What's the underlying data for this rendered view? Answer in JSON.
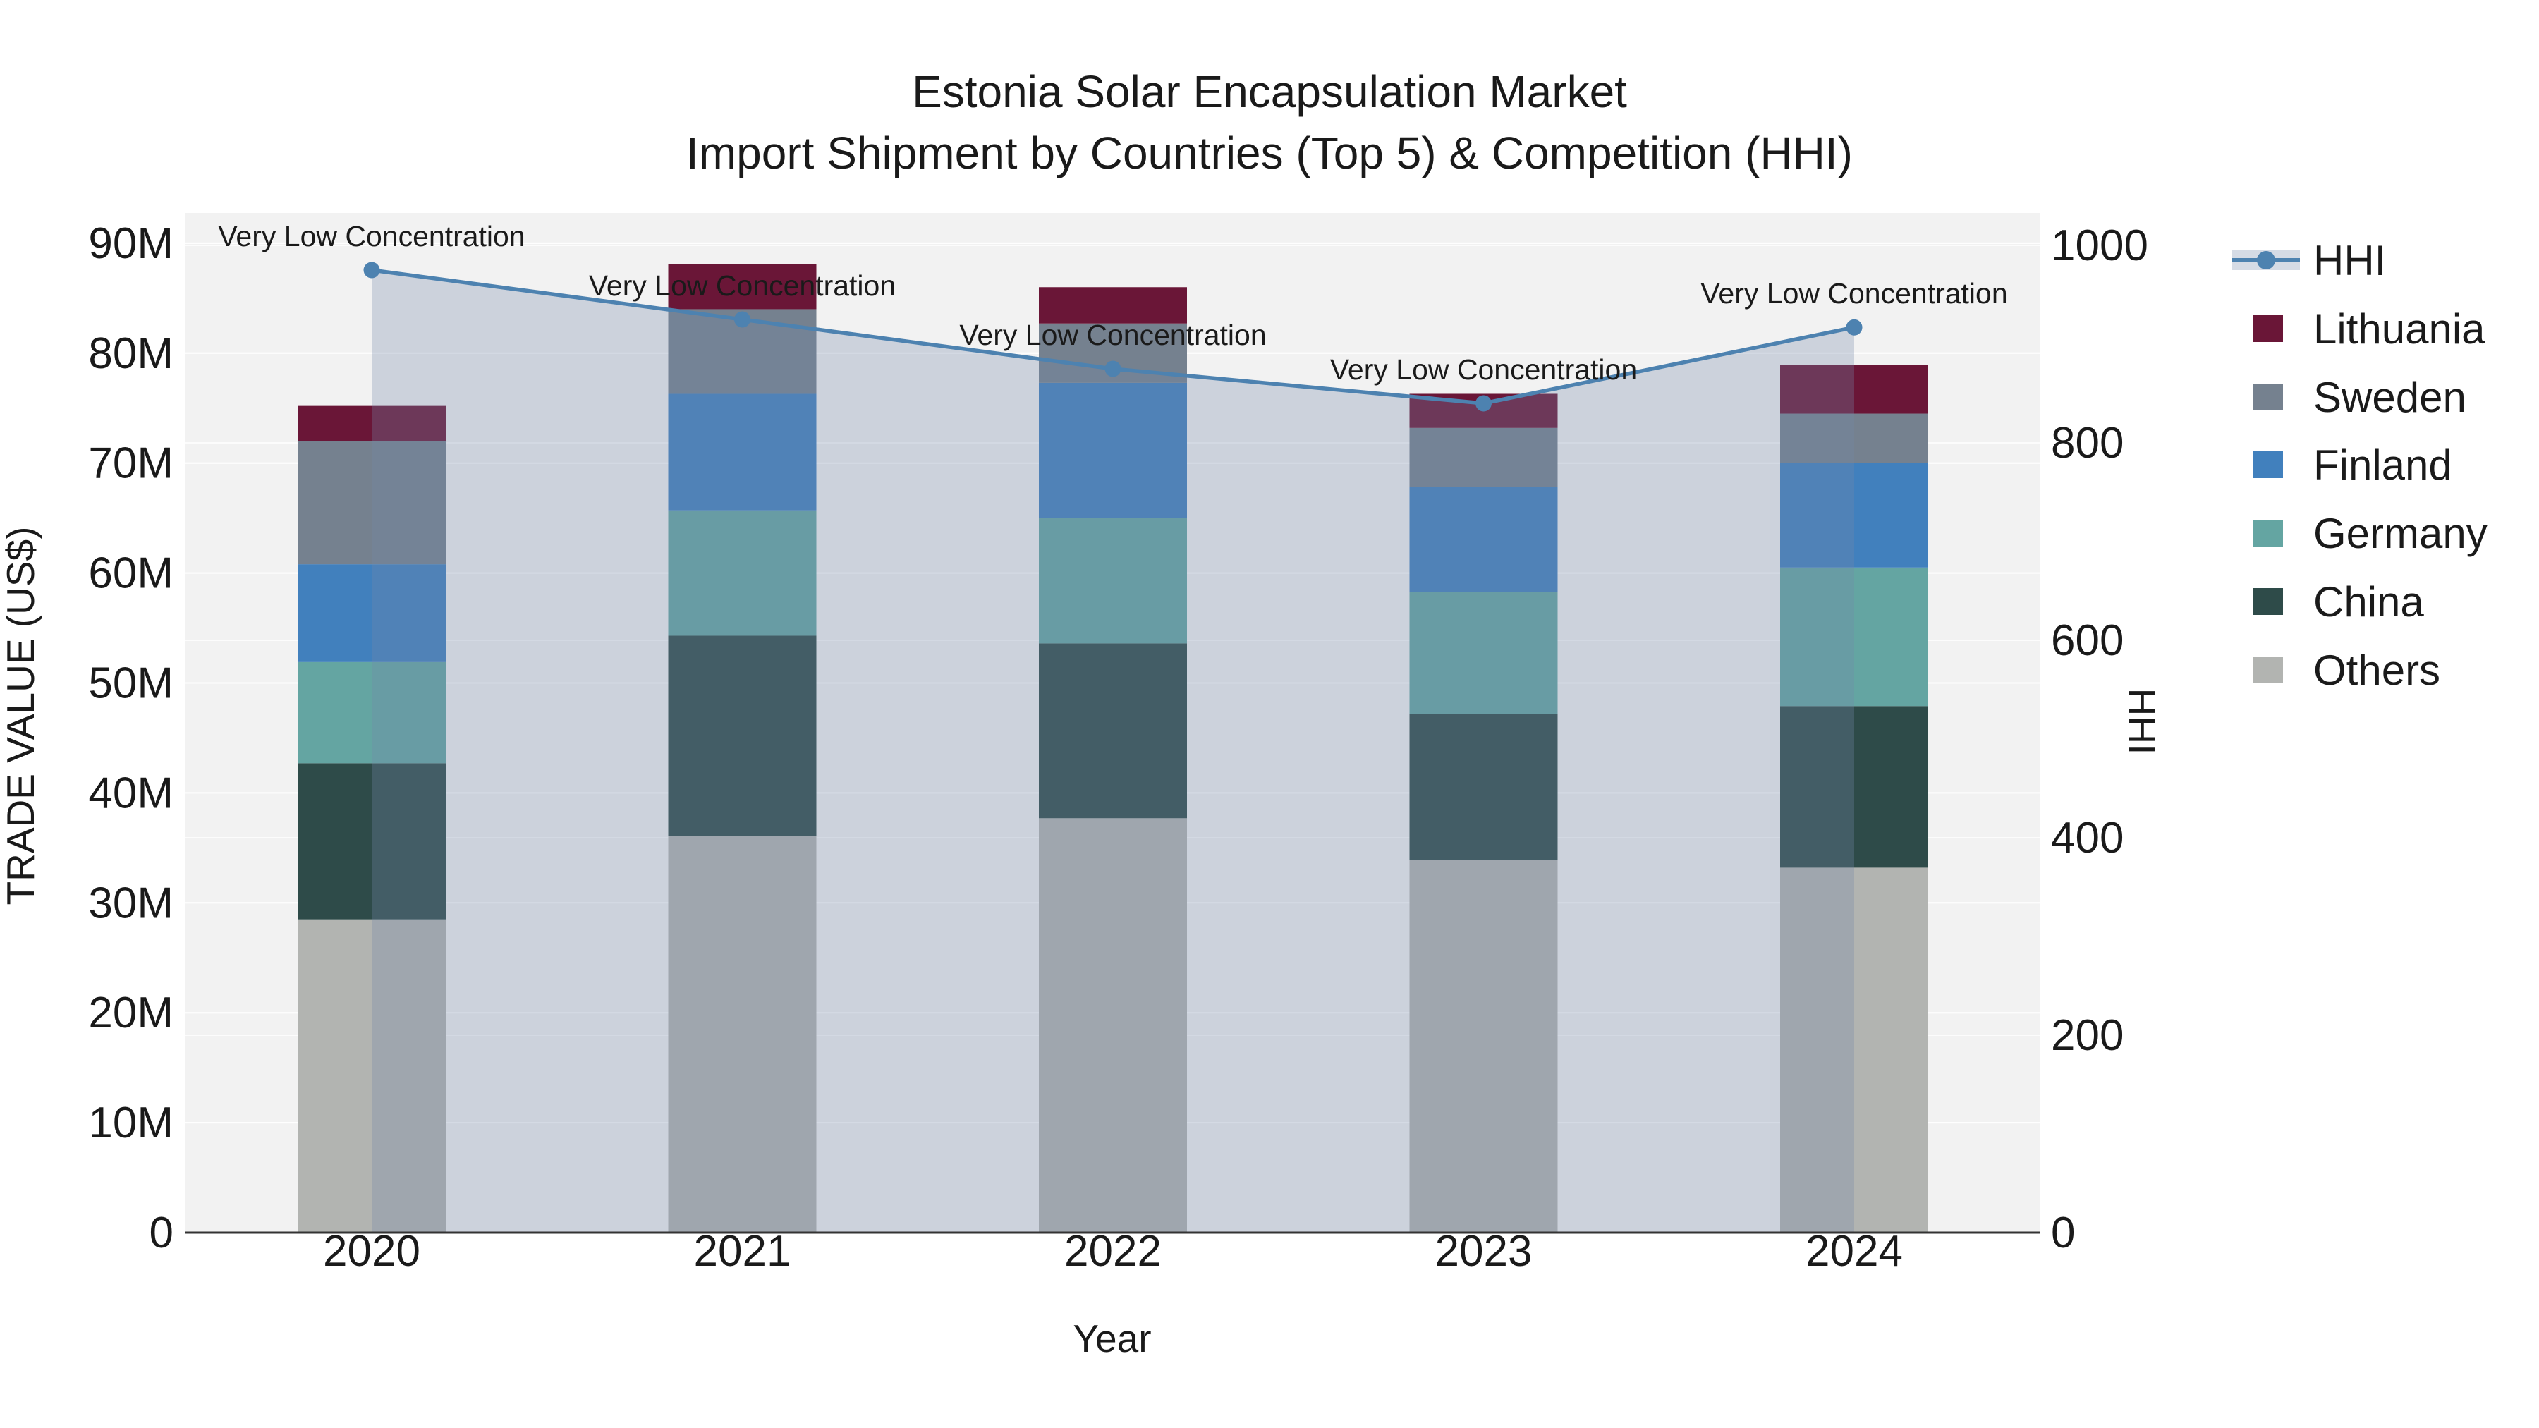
{
  "title": {
    "line1": "Estonia Solar Encapsulation Market",
    "line2": "Import Shipment by Countries (Top 5) & Competition (HHI)"
  },
  "chart_data": {
    "type": "bar",
    "subtype": "stacked-bars-with-hhi-line-area",
    "categories": [
      "2020",
      "2021",
      "2022",
      "2023",
      "2024"
    ],
    "value_unit": "million US$",
    "series": [
      {
        "name": "Others",
        "color": "#b2b4b1",
        "values": [
          28.5,
          36.1,
          37.7,
          33.9,
          33.2
        ]
      },
      {
        "name": "China",
        "color": "#2e4b49",
        "values": [
          14.2,
          18.2,
          15.9,
          13.3,
          14.7
        ]
      },
      {
        "name": "Germany",
        "color": "#64a5a2",
        "values": [
          9.2,
          11.4,
          11.4,
          11.1,
          12.6
        ]
      },
      {
        "name": "Finland",
        "color": "#4180bd",
        "values": [
          8.9,
          10.6,
          12.3,
          9.5,
          9.5
        ]
      },
      {
        "name": "Sweden",
        "color": "#75818f",
        "values": [
          11.2,
          7.7,
          5.4,
          5.4,
          4.5
        ]
      },
      {
        "name": "Lithuania",
        "color": "#6a1637",
        "values": [
          3.2,
          4.1,
          3.3,
          3.1,
          4.4
        ]
      }
    ],
    "line": {
      "name": "HHI",
      "color": "#4d82b0",
      "area_fill": "rgba(115,135,168,0.30)",
      "values": [
        975,
        925,
        875,
        840,
        917
      ]
    },
    "point_annotations": [
      "Very Low Concentration",
      "Very Low Concentration",
      "Very Low Concentration",
      "Very Low Concentration",
      "Very Low Concentration"
    ],
    "xlabel": "Year",
    "ylabel_left": "TRADE VALUE (US$)",
    "ylabel_right": "HHI",
    "ylim_left_millions": [
      0,
      92.8
    ],
    "ylim_right": [
      0,
      1000
    ],
    "yticks_left": [
      "0",
      "10M",
      "20M",
      "30M",
      "40M",
      "50M",
      "60M",
      "70M",
      "80M",
      "90M"
    ],
    "yticks_right": [
      "0",
      "200",
      "400",
      "600",
      "800",
      "1000"
    ],
    "grid": true,
    "legend_position": "right",
    "plot_bg": "#f2f2f2",
    "grid_color": "#ffffff",
    "axis_line_color": "#333333",
    "legend": [
      {
        "label": "HHI",
        "type": "line",
        "color": "#4d82b0"
      },
      {
        "label": "Lithuania",
        "type": "swatch",
        "color": "#6a1637"
      },
      {
        "label": "Sweden",
        "type": "swatch",
        "color": "#75818f"
      },
      {
        "label": "Finland",
        "type": "swatch",
        "color": "#4180bd"
      },
      {
        "label": "Germany",
        "type": "swatch",
        "color": "#64a5a2"
      },
      {
        "label": "China",
        "type": "swatch",
        "color": "#2e4b49"
      },
      {
        "label": "Others",
        "type": "swatch",
        "color": "#b2b4b1"
      }
    ]
  }
}
